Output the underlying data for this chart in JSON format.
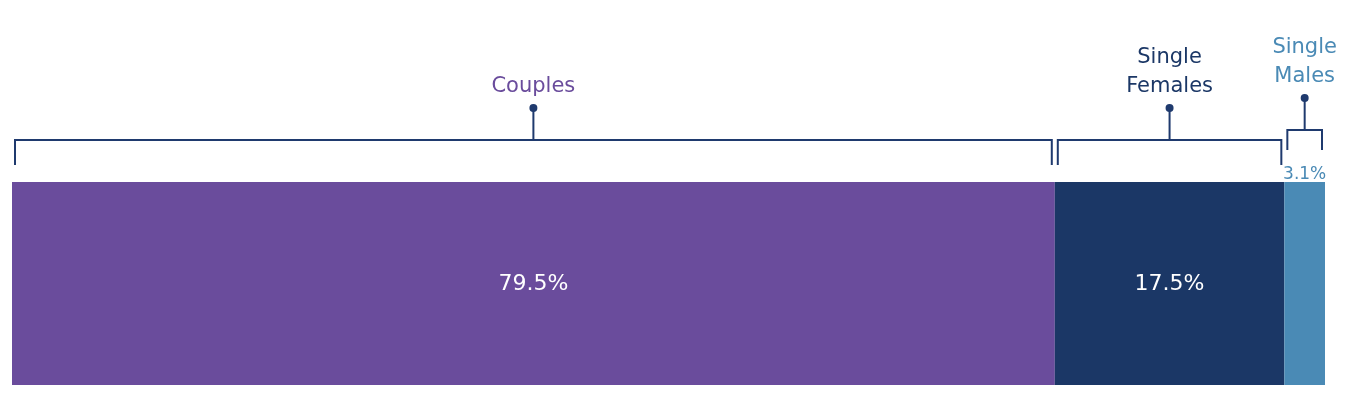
{
  "chart_data": {
    "type": "bar",
    "orientation": "horizontal",
    "stacked": true,
    "tick_labels": false,
    "categories": [
      null
    ],
    "series": [
      {
        "name": "Couples",
        "color": "#6a4c9c",
        "values": [
          79.5
        ],
        "value_labels": [
          "79.5%"
        ]
      },
      {
        "name": "Single Females",
        "color": "#1b3766",
        "values": [
          17.5
        ],
        "value_labels": [
          "17.5%"
        ]
      },
      {
        "name": "Single Males",
        "color": "#4a8ab5",
        "values": [
          3.1
        ],
        "value_labels": [
          "3.1%"
        ]
      }
    ]
  }
}
